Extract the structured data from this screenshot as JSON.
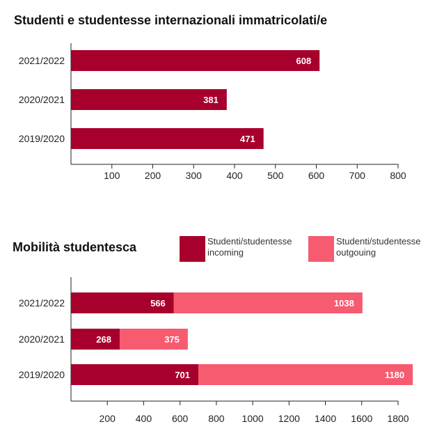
{
  "chart_data": [
    {
      "type": "bar",
      "orientation": "horizontal",
      "title": "Studenti e studentesse internazionali immatricolati/e",
      "categories": [
        "2021/2022",
        "2020/2021",
        "2019/2020"
      ],
      "values": [
        608,
        381,
        471
      ],
      "value_labels": [
        "608",
        "381",
        "471"
      ],
      "xlim": [
        0,
        800
      ],
      "xticks": [
        100,
        200,
        300,
        400,
        500,
        600,
        700,
        800
      ],
      "xtick_labels": [
        "100",
        "200",
        "300",
        "400",
        "500",
        "600",
        "700",
        "800"
      ],
      "color": "#a8002d",
      "grid": false
    },
    {
      "type": "bar",
      "orientation": "horizontal",
      "stacked": true,
      "title": "Mobilità studentesca",
      "categories": [
        "2021/2022",
        "2020/2021",
        "2019/2020"
      ],
      "series": [
        {
          "name": "Studenti/studentesse incoming",
          "values": [
            566,
            268,
            701
          ],
          "value_labels": [
            "566",
            "268",
            "701"
          ],
          "color": "#a8002d"
        },
        {
          "name": "Studenti/studentesse outgouing",
          "values": [
            1038,
            375,
            1180
          ],
          "value_labels": [
            "1038",
            "375",
            "1180"
          ],
          "color": "#f75b6f"
        }
      ],
      "xlim": [
        0,
        1800
      ],
      "xticks": [
        200,
        400,
        600,
        800,
        1000,
        1200,
        1400,
        1600,
        1800
      ],
      "xtick_labels": [
        "200",
        "400",
        "600",
        "800",
        "1000",
        "1200",
        "1400",
        "1600",
        "1800"
      ],
      "legend": "top-right",
      "grid": false
    }
  ]
}
